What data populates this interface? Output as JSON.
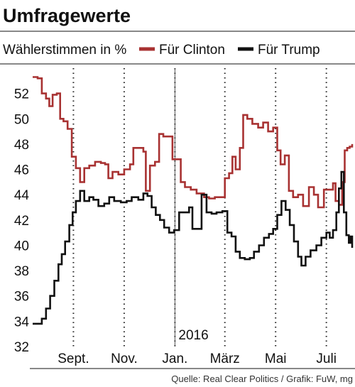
{
  "chart_data": {
    "type": "line",
    "title": "Umfragewerte",
    "ylabel": "Wählerstimmen in %",
    "source": "Quelle: Real Clear Politics / Grafik: FuW, mg",
    "year_marker": "2016",
    "ylim": [
      32,
      54
    ],
    "yticks": [
      32,
      34,
      36,
      38,
      40,
      42,
      44,
      46,
      48,
      50,
      52
    ],
    "x_range": [
      "2015-07-14",
      "2016-08-01"
    ],
    "x_ticks": [
      {
        "label": "Sept.",
        "date": "2015-09-01"
      },
      {
        "label": "Nov.",
        "date": "2015-11-01"
      },
      {
        "label": "Jan.",
        "date": "2016-01-01"
      },
      {
        "label": "März",
        "date": "2016-03-01"
      },
      {
        "label": "Mai",
        "date": "2016-05-01"
      },
      {
        "label": "Juli",
        "date": "2016-07-01"
      }
    ],
    "grid": "dotted vertical",
    "legend_position": "top",
    "series": [
      {
        "name": "Für Clinton",
        "color": "#a83232",
        "points": [
          [
            "2015-07-14",
            53.3
          ],
          [
            "2015-07-20",
            53.2
          ],
          [
            "2015-07-25",
            52.0
          ],
          [
            "2015-07-30",
            51.6
          ],
          [
            "2015-08-03",
            51.0
          ],
          [
            "2015-08-07",
            51.9
          ],
          [
            "2015-08-12",
            52.0
          ],
          [
            "2015-08-16",
            50.0
          ],
          [
            "2015-08-20",
            49.8
          ],
          [
            "2015-08-25",
            49.2
          ],
          [
            "2015-08-30",
            47.0
          ],
          [
            "2015-09-04",
            46.1
          ],
          [
            "2015-09-09",
            45.0
          ],
          [
            "2015-09-14",
            46.1
          ],
          [
            "2015-09-20",
            46.3
          ],
          [
            "2015-09-27",
            46.6
          ],
          [
            "2015-10-04",
            46.5
          ],
          [
            "2015-10-09",
            46.4
          ],
          [
            "2015-10-13",
            45.3
          ],
          [
            "2015-10-18",
            45.8
          ],
          [
            "2015-10-25",
            45.6
          ],
          [
            "2015-11-01",
            46.0
          ],
          [
            "2015-11-08",
            46.4
          ],
          [
            "2015-11-12",
            47.7
          ],
          [
            "2015-11-18",
            47.7
          ],
          [
            "2015-11-24",
            47.4
          ],
          [
            "2015-11-27",
            44.3
          ],
          [
            "2015-12-02",
            46.3
          ],
          [
            "2015-12-08",
            46.6
          ],
          [
            "2015-12-13",
            48.8
          ],
          [
            "2015-12-18",
            48.6
          ],
          [
            "2015-12-24",
            48.6
          ],
          [
            "2015-12-29",
            46.8
          ],
          [
            "2016-01-02",
            46.8
          ],
          [
            "2016-01-08",
            45.0
          ],
          [
            "2016-01-13",
            44.6
          ],
          [
            "2016-01-20",
            44.4
          ],
          [
            "2016-01-27",
            44.1
          ],
          [
            "2016-02-05",
            43.8
          ],
          [
            "2016-02-11",
            43.7
          ],
          [
            "2016-02-18",
            43.8
          ],
          [
            "2016-02-24",
            43.8
          ],
          [
            "2016-03-01",
            45.3
          ],
          [
            "2016-03-06",
            45.7
          ],
          [
            "2016-03-10",
            47.0
          ],
          [
            "2016-03-14",
            46.0
          ],
          [
            "2016-03-19",
            47.7
          ],
          [
            "2016-03-23",
            50.3
          ],
          [
            "2016-03-28",
            50.0
          ],
          [
            "2016-04-03",
            49.6
          ],
          [
            "2016-04-10",
            49.3
          ],
          [
            "2016-04-16",
            49.7
          ],
          [
            "2016-04-22",
            49.0
          ],
          [
            "2016-04-28",
            49.3
          ],
          [
            "2016-05-03",
            47.5
          ],
          [
            "2016-05-07",
            46.4
          ],
          [
            "2016-05-12",
            47.1
          ],
          [
            "2016-05-17",
            44.3
          ],
          [
            "2016-05-22",
            43.8
          ],
          [
            "2016-05-28",
            44.0
          ],
          [
            "2016-06-03",
            43.1
          ],
          [
            "2016-06-10",
            44.6
          ],
          [
            "2016-06-16",
            44.0
          ],
          [
            "2016-06-21",
            43.0
          ],
          [
            "2016-06-28",
            44.4
          ],
          [
            "2016-07-04",
            44.4
          ],
          [
            "2016-07-09",
            44.9
          ],
          [
            "2016-07-12",
            43.5
          ],
          [
            "2016-07-16",
            43.2
          ],
          [
            "2016-07-20",
            45.0
          ],
          [
            "2016-07-23",
            47.5
          ],
          [
            "2016-07-26",
            47.7
          ],
          [
            "2016-07-29",
            47.8
          ],
          [
            "2016-08-01",
            48.0
          ]
        ]
      },
      {
        "name": "Für Trump",
        "color": "#111111",
        "points": [
          [
            "2015-07-14",
            33.8
          ],
          [
            "2015-07-20",
            33.8
          ],
          [
            "2015-07-25",
            34.2
          ],
          [
            "2015-07-30",
            35.0
          ],
          [
            "2015-08-04",
            36.0
          ],
          [
            "2015-08-09",
            37.2
          ],
          [
            "2015-08-14",
            38.5
          ],
          [
            "2015-08-18",
            39.3
          ],
          [
            "2015-08-22",
            40.3
          ],
          [
            "2015-08-27",
            41.6
          ],
          [
            "2015-08-31",
            42.6
          ],
          [
            "2015-09-04",
            43.5
          ],
          [
            "2015-09-09",
            44.3
          ],
          [
            "2015-09-14",
            43.5
          ],
          [
            "2015-09-20",
            43.8
          ],
          [
            "2015-09-25",
            43.6
          ],
          [
            "2015-10-01",
            43.1
          ],
          [
            "2015-10-08",
            43.3
          ],
          [
            "2015-10-14",
            43.8
          ],
          [
            "2015-10-20",
            43.5
          ],
          [
            "2015-10-28",
            43.4
          ],
          [
            "2015-11-04",
            43.5
          ],
          [
            "2015-11-10",
            43.8
          ],
          [
            "2015-11-18",
            43.6
          ],
          [
            "2015-11-24",
            44.1
          ],
          [
            "2015-11-29",
            43.9
          ],
          [
            "2015-12-04",
            43.0
          ],
          [
            "2015-12-09",
            42.4
          ],
          [
            "2015-12-14",
            42.0
          ],
          [
            "2015-12-19",
            41.4
          ],
          [
            "2015-12-25",
            41.0
          ],
          [
            "2015-12-31",
            41.2
          ],
          [
            "2016-01-06",
            42.6
          ],
          [
            "2016-01-12",
            42.6
          ],
          [
            "2016-01-18",
            43.0
          ],
          [
            "2016-01-22",
            41.3
          ],
          [
            "2016-01-27",
            41.3
          ],
          [
            "2016-02-02",
            44.0
          ],
          [
            "2016-02-08",
            42.6
          ],
          [
            "2016-02-14",
            42.5
          ],
          [
            "2016-02-20",
            42.6
          ],
          [
            "2016-02-27",
            42.7
          ],
          [
            "2016-03-04",
            41.0
          ],
          [
            "2016-03-09",
            40.7
          ],
          [
            "2016-03-14",
            39.5
          ],
          [
            "2016-03-19",
            39.0
          ],
          [
            "2016-03-25",
            38.9
          ],
          [
            "2016-03-31",
            39.0
          ],
          [
            "2016-04-05",
            39.5
          ],
          [
            "2016-04-11",
            40.0
          ],
          [
            "2016-04-17",
            40.6
          ],
          [
            "2016-04-23",
            40.9
          ],
          [
            "2016-04-28",
            41.3
          ],
          [
            "2016-05-03",
            42.4
          ],
          [
            "2016-05-08",
            43.5
          ],
          [
            "2016-05-13",
            42.8
          ],
          [
            "2016-05-18",
            41.6
          ],
          [
            "2016-05-23",
            40.3
          ],
          [
            "2016-05-28",
            39.1
          ],
          [
            "2016-06-01",
            38.4
          ],
          [
            "2016-06-06",
            39.1
          ],
          [
            "2016-06-12",
            39.6
          ],
          [
            "2016-06-19",
            40.0
          ],
          [
            "2016-06-25",
            40.6
          ],
          [
            "2016-07-01",
            41.0
          ],
          [
            "2016-07-05",
            40.6
          ],
          [
            "2016-07-09",
            41.2
          ],
          [
            "2016-07-13",
            42.6
          ],
          [
            "2016-07-16",
            44.5
          ],
          [
            "2016-07-19",
            45.8
          ],
          [
            "2016-07-22",
            42.6
          ],
          [
            "2016-07-25",
            40.8
          ],
          [
            "2016-07-28",
            40.2
          ],
          [
            "2016-07-30",
            40.7
          ],
          [
            "2016-08-01",
            39.8
          ]
        ]
      }
    ]
  }
}
